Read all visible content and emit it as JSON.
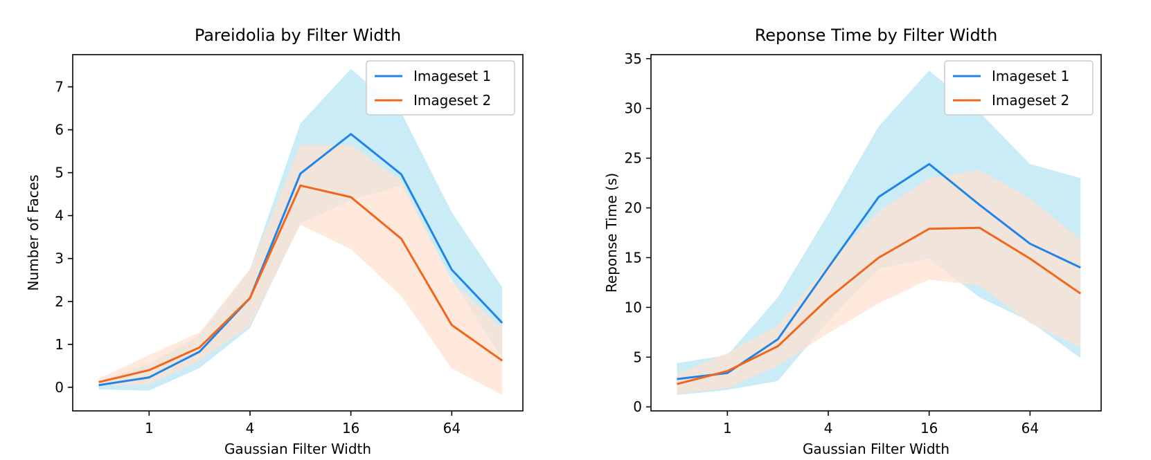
{
  "chart_data": [
    {
      "type": "line",
      "title": "Pareidolia by Filter Width",
      "xlabel": "Gaussian Filter Width",
      "ylabel": "Number of Faces",
      "x_scale": "log2",
      "x": [
        0.5,
        1,
        2,
        4,
        8,
        16,
        32,
        64,
        128
      ],
      "xticks": [
        1,
        4,
        16,
        64
      ],
      "xtick_labels": [
        "1",
        "4",
        "16",
        "64"
      ],
      "xlim": [
        0.35,
        170
      ],
      "ylim": [
        -0.55,
        7.75
      ],
      "yticks": [
        0,
        1,
        2,
        3,
        4,
        5,
        6,
        7
      ],
      "ytick_labels": [
        "0",
        "1",
        "2",
        "3",
        "4",
        "5",
        "6",
        "7"
      ],
      "legend": {
        "position": "top-right",
        "entries": [
          "Imageset 1",
          "Imageset 2"
        ]
      },
      "grid": false,
      "series": [
        {
          "name": "Imageset 1",
          "color": "#1f84e8",
          "band_color": "#c9ecf6",
          "values": [
            0.05,
            0.23,
            0.83,
            2.08,
            4.98,
            5.9,
            4.96,
            2.74,
            1.5
          ],
          "band_lower": [
            -0.05,
            -0.08,
            0.45,
            1.38,
            3.82,
            4.35,
            4.7,
            2.5,
            0.68
          ],
          "band_upper": [
            0.12,
            0.55,
            1.2,
            2.75,
            6.15,
            7.42,
            6.4,
            4.08,
            2.33
          ]
        },
        {
          "name": "Imageset 2",
          "color": "#f0661a",
          "band_color": "#fde2d0",
          "values": [
            0.12,
            0.4,
            0.93,
            2.08,
            4.7,
            4.43,
            3.46,
            1.45,
            0.62
          ],
          "band_lower": [
            0.04,
            0.06,
            0.62,
            1.44,
            3.78,
            3.22,
            2.12,
            0.44,
            -0.18
          ],
          "band_upper": [
            0.2,
            0.75,
            1.28,
            2.76,
            5.65,
            5.65,
            4.82,
            2.48,
            1.38
          ]
        }
      ]
    },
    {
      "type": "line",
      "title": "Reponse Time by Filter Width",
      "xlabel": "Gaussian Filter Width",
      "ylabel": "Reponse Time (s)",
      "x_scale": "log2",
      "x": [
        0.5,
        1,
        2,
        4,
        8,
        16,
        32,
        64,
        128
      ],
      "xticks": [
        1,
        4,
        16,
        64
      ],
      "xtick_labels": [
        "1",
        "4",
        "16",
        "64"
      ],
      "xlim": [
        0.35,
        170
      ],
      "ylim": [
        -0.4,
        35.4
      ],
      "yticks": [
        0,
        5,
        10,
        15,
        20,
        25,
        30,
        35
      ],
      "ytick_labels": [
        "0",
        "5",
        "10",
        "15",
        "20",
        "25",
        "30",
        "35"
      ],
      "legend": {
        "position": "top-right",
        "entries": [
          "Imageset 1",
          "Imageset 2"
        ]
      },
      "grid": false,
      "series": [
        {
          "name": "Imageset 1",
          "color": "#1f84e8",
          "band_color": "#c9ecf6",
          "values": [
            2.8,
            3.4,
            6.8,
            14.0,
            21.1,
            24.4,
            20.3,
            16.4,
            14.0
          ],
          "band_lower": [
            1.2,
            1.7,
            2.6,
            8.6,
            13.9,
            14.9,
            11.0,
            8.6,
            4.9
          ],
          "band_upper": [
            4.4,
            5.2,
            11.0,
            19.4,
            28.2,
            33.8,
            29.6,
            24.4,
            23.0
          ]
        },
        {
          "name": "Imageset 2",
          "color": "#f0661a",
          "band_color": "#fde2d0",
          "values": [
            2.3,
            3.6,
            6.1,
            10.9,
            15.0,
            17.9,
            18.0,
            14.9,
            11.4
          ],
          "band_lower": [
            1.3,
            1.9,
            4.1,
            7.4,
            10.4,
            12.8,
            12.2,
            8.4,
            6.0
          ],
          "band_upper": [
            3.3,
            5.4,
            8.2,
            14.4,
            19.7,
            23.0,
            23.8,
            21.0,
            16.8
          ]
        }
      ]
    }
  ]
}
